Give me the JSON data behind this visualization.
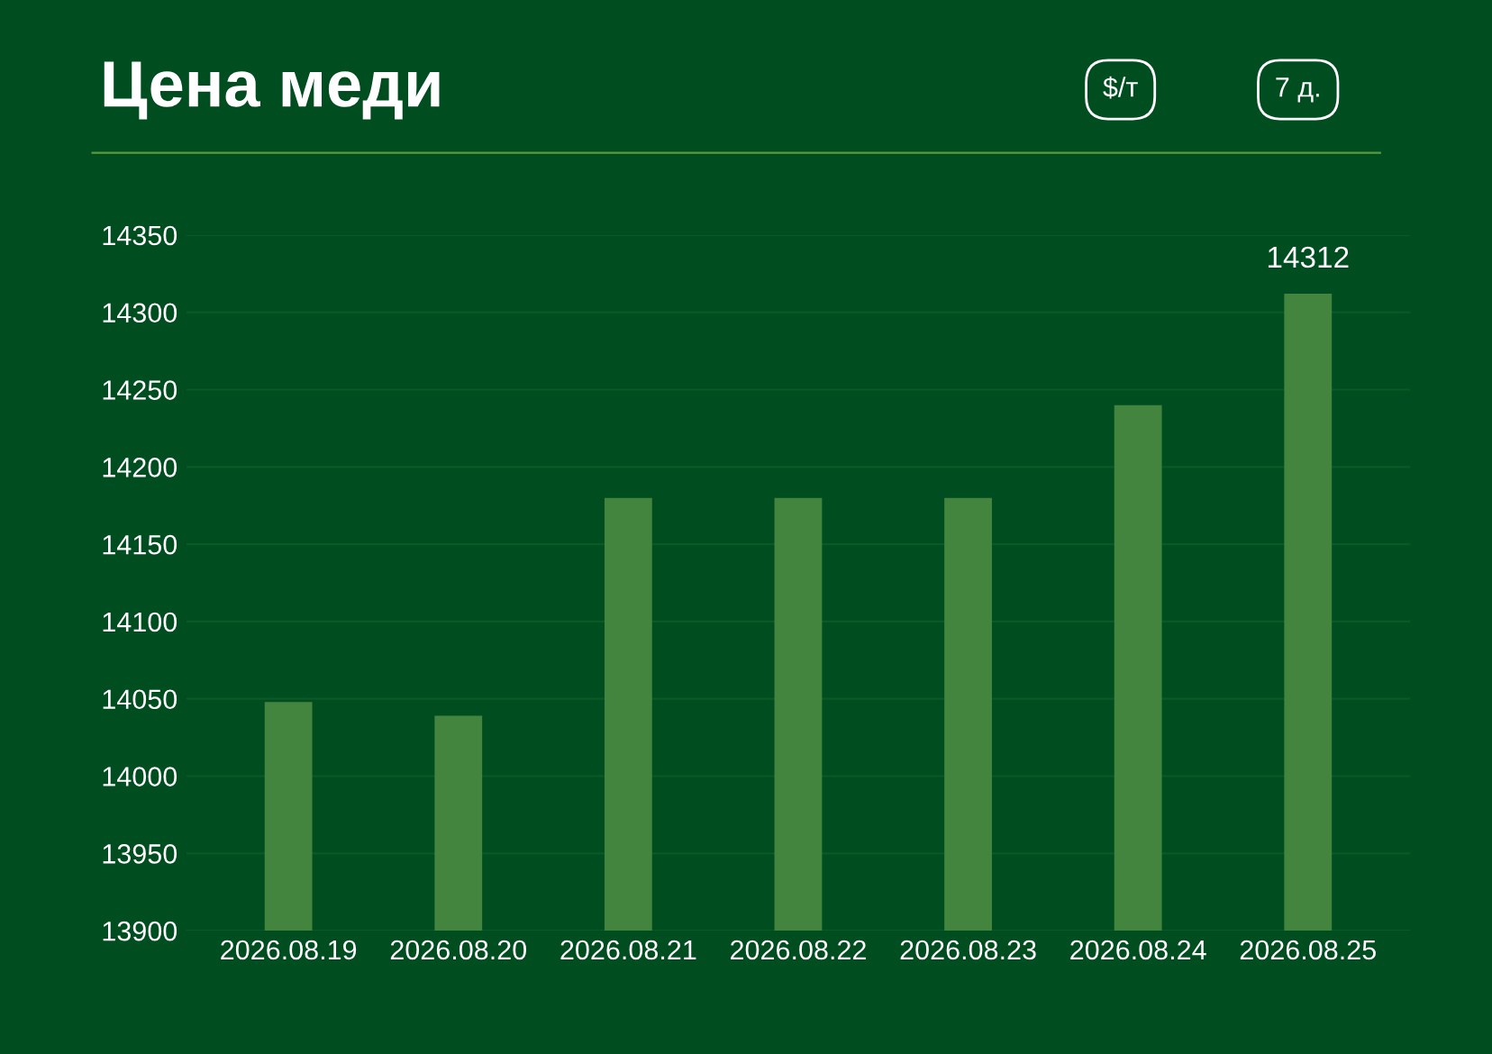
{
  "chart_data": {
    "type": "bar",
    "title": "Цена меди",
    "annotations": [
      "$/т",
      "7 д."
    ],
    "categories": [
      "2026.08.19",
      "2026.08.20",
      "2026.08.21",
      "2026.08.22",
      "2026.08.23",
      "2026.08.24",
      "2026.08.25"
    ],
    "values": [
      14048,
      14039,
      14180,
      14180,
      14180,
      14240,
      14312
    ],
    "value_labels": [
      null,
      null,
      null,
      null,
      null,
      null,
      "14312"
    ],
    "color": "#43853e",
    "ylim": [
      13900,
      14350
    ],
    "yticks": [
      13900,
      13950,
      14000,
      14050,
      14100,
      14150,
      14200,
      14250,
      14300,
      14350
    ],
    "grid": "y",
    "legend": false
  }
}
